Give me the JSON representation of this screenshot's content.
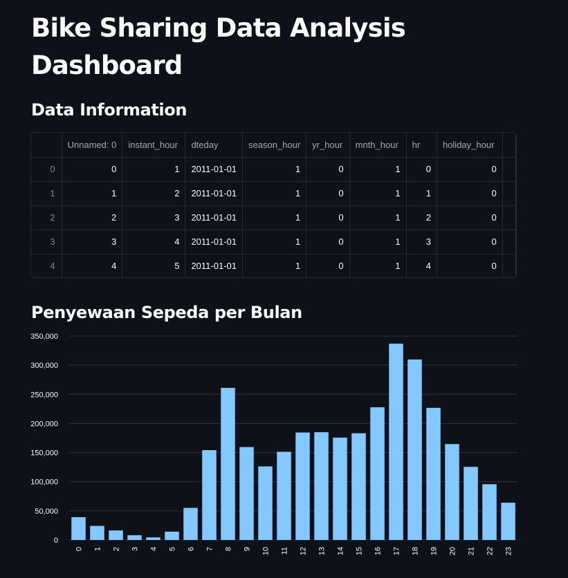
{
  "page": {
    "title": "Bike Sharing Data Analysis Dashboard",
    "section_data_info": "Data Information",
    "section_chart": "Penyewaan Sepeda per Bulan"
  },
  "table": {
    "columns": [
      "",
      "Unnamed: 0",
      "instant_hour",
      "dteday",
      "season_hour",
      "yr_hour",
      "mnth_hour",
      "hr",
      "holiday_hour"
    ],
    "rows": [
      [
        "0",
        "0",
        "1",
        "2011-01-01",
        "1",
        "0",
        "1",
        "0",
        "0"
      ],
      [
        "1",
        "1",
        "2",
        "2011-01-01",
        "1",
        "0",
        "1",
        "1",
        "0"
      ],
      [
        "2",
        "2",
        "3",
        "2011-01-01",
        "1",
        "0",
        "1",
        "2",
        "0"
      ],
      [
        "3",
        "3",
        "4",
        "2011-01-01",
        "1",
        "0",
        "1",
        "3",
        "0"
      ],
      [
        "4",
        "4",
        "5",
        "2011-01-01",
        "1",
        "0",
        "1",
        "4",
        "0"
      ]
    ]
  },
  "colors": {
    "background": "#0e1117",
    "bar": "#83c9ff",
    "grid": "#31333f",
    "border": "#262a33"
  },
  "chart_data": {
    "type": "bar",
    "title": "",
    "xlabel": "",
    "ylabel": "",
    "categories": [
      "0",
      "1",
      "2",
      "3",
      "4",
      "5",
      "6",
      "7",
      "8",
      "9",
      "10",
      "11",
      "12",
      "13",
      "14",
      "15",
      "16",
      "17",
      "18",
      "19",
      "20",
      "21",
      "22",
      "23"
    ],
    "values": [
      39130,
      24164,
      16352,
      8174,
      4428,
      14261,
      55132,
      154171,
      261001,
      159438,
      126257,
      151320,
      184414,
      184919,
      175652,
      183149,
      227748,
      336860,
      309772,
      226789,
      164550,
      125445,
      95612,
      63941
    ],
    "ylim": [
      0,
      350000
    ],
    "yticks": [
      0,
      50000,
      100000,
      150000,
      200000,
      250000,
      300000,
      350000
    ],
    "ytick_labels": [
      "0",
      "50,000",
      "100,000",
      "150,000",
      "200,000",
      "250,000",
      "300,000",
      "350,000"
    ],
    "grid": true,
    "legend": "none"
  }
}
